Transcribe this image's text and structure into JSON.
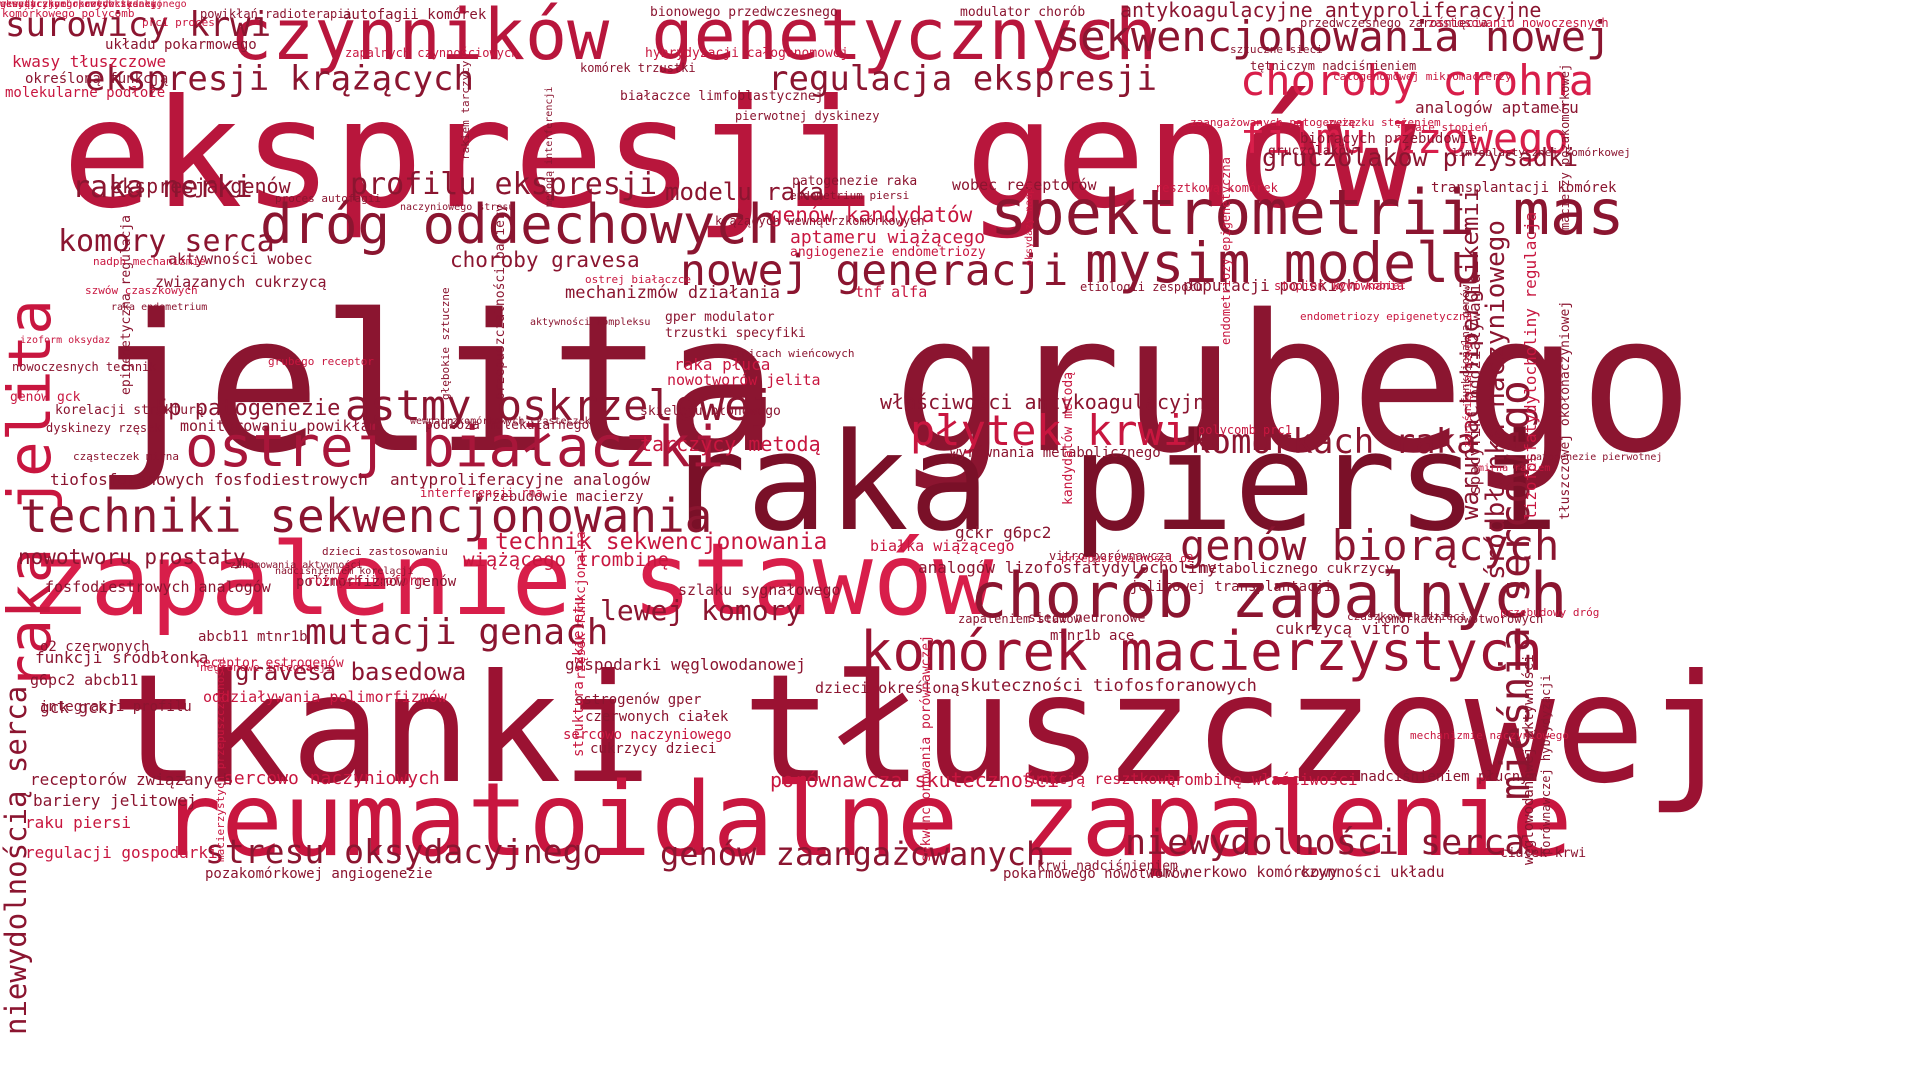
{
  "palette": {
    "background": "#ffffff",
    "dark": "#8b1530",
    "mid": "#b8163c",
    "bright": "#d81e4a",
    "wine": "#7a1028"
  },
  "words": [
    {
      "text": "jelita grubego",
      "color": "#8b1530"
    },
    {
      "text": "ekspresji genów",
      "color": "#b8163c"
    },
    {
      "text": "raka piersi",
      "color": "#7a1028"
    },
    {
      "text": "tkanki tłuszczowej",
      "color": "#9b1232"
    },
    {
      "text": "reumatoidalne zapalenie",
      "color": "#c8163f"
    },
    {
      "text": "zapalenie stawów",
      "color": "#d81e4a"
    },
    {
      "text": "czynników genetycznych",
      "color": "#b8163c"
    },
    {
      "text": "spektrometrii mas",
      "color": "#8b1530"
    },
    {
      "text": "dróg oddechowych",
      "color": "#8b1530"
    },
    {
      "text": "mysim modelu",
      "color": "#8b1530"
    },
    {
      "text": "ostrej białaczki",
      "color": "#a8163a"
    },
    {
      "text": "techniki sekwencjonowania",
      "color": "#8b1530"
    },
    {
      "text": "chorób zapalnych",
      "color": "#8b1530"
    },
    {
      "text": "komórek macierzystych",
      "color": "#9b1232"
    },
    {
      "text": "raka jelita",
      "color": "#c8163f"
    },
    {
      "text": "sekwencjonowania nowej",
      "color": "#8b1530"
    },
    {
      "text": "choroby crohna",
      "color": "#d81e4a"
    },
    {
      "text": "filmu łzowego",
      "color": "#d81e4a"
    },
    {
      "text": "nowej generacji",
      "color": "#8b1530"
    },
    {
      "text": "płytek krwi",
      "color": "#c8163f"
    },
    {
      "text": "astmy oskrzelowej",
      "color": "#8b1530"
    },
    {
      "text": "genów biorących",
      "color": "#8b1530"
    },
    {
      "text": "mutacji genach",
      "color": "#8b1530"
    },
    {
      "text": "mięśnia sercowego",
      "color": "#8b1530"
    },
    {
      "text": "komórkach raka",
      "color": "#8b1530"
    },
    {
      "text": "stresu oksydacyjnego",
      "color": "#8b1530"
    },
    {
      "text": "niewydolności serca",
      "color": "#8b1530"
    },
    {
      "text": "genów zaangażowanych",
      "color": "#8b1530"
    },
    {
      "text": "ekspresji krążących",
      "color": "#8b1530"
    },
    {
      "text": "regulacja ekspresji",
      "color": "#8b1530"
    },
    {
      "text": "surowicy krwi",
      "color": "#8b1530"
    },
    {
      "text": "profilu ekspresji",
      "color": "#8b1530"
    },
    {
      "text": "komory serca",
      "color": "#8b1530"
    },
    {
      "text": "raka nerki",
      "color": "#8b1530"
    },
    {
      "text": "lewej komory",
      "color": "#8b1530"
    },
    {
      "text": "gravesa basedowa",
      "color": "#8b1530"
    },
    {
      "text": "niewydolnością serca",
      "color": "#8b1530"
    },
    {
      "text": "gruczolaków przysadki",
      "color": "#8b1530"
    },
    {
      "text": "warunkach hiperglikemii",
      "color": "#8b1530"
    },
    {
      "text": "śródbłonka naczyniowego",
      "color": "#8b1530"
    },
    {
      "text": "ekspresja genów",
      "color": "#8b1530"
    },
    {
      "text": "modelu raka",
      "color": "#8b1530"
    },
    {
      "text": "genów kandydatów",
      "color": "#c8163f"
    },
    {
      "text": "choroby gravesa",
      "color": "#8b1530"
    },
    {
      "text": "aptameru wiążącego",
      "color": "#c8163f"
    },
    {
      "text": "mechanizmów działania",
      "color": "#8b1530"
    },
    {
      "text": "5p patogenezie",
      "color": "#8b1530"
    },
    {
      "text": "właściwości antykoagulacyjne",
      "color": "#8b1530"
    },
    {
      "text": "tarczycy metodą",
      "color": "#c8163f"
    },
    {
      "text": "technik sekwencjonowania",
      "color": "#c8163f"
    },
    {
      "text": "nowotworu prostaty",
      "color": "#8b1530"
    },
    {
      "text": "wiążącego trombinę",
      "color": "#c8163f"
    },
    {
      "text": "tiofosforanowych fosfodiestrowych",
      "color": "#8b1530"
    },
    {
      "text": "antyproliferacyjne analogów",
      "color": "#8b1530"
    },
    {
      "text": "fosfodiestrowych analogów",
      "color": "#8b1530"
    },
    {
      "text": "funkcji śródbłonka",
      "color": "#8b1530"
    },
    {
      "text": "skuteczności tiofosforanowych",
      "color": "#8b1530"
    },
    {
      "text": "porównawcza skuteczności",
      "color": "#c8163f"
    },
    {
      "text": "sercowo naczyniowych",
      "color": "#c8163f"
    },
    {
      "text": "receptorów związanych",
      "color": "#8b1530"
    },
    {
      "text": "bariery jelitowej",
      "color": "#8b1530"
    },
    {
      "text": "raku piersi",
      "color": "#c8163f"
    },
    {
      "text": "regulacji gospodarki",
      "color": "#c8163f"
    },
    {
      "text": "antykoagulacyjne antyproliferacyjne",
      "color": "#8b1530"
    },
    {
      "text": "analogów aptameru",
      "color": "#8b1530"
    },
    {
      "text": "populacji polskich",
      "color": "#8b1530"
    },
    {
      "text": "specyfiki oddziaływania",
      "color": "#8b1530"
    },
    {
      "text": "lizofosfatydylocholiny regulacja",
      "color": "#c8163f"
    },
    {
      "text": "tłuszczowej okołonaczyniowej",
      "color": "#8b1530"
    },
    {
      "text": "analogów lizofosfatydylocholiny",
      "color": "#8b1530"
    },
    {
      "text": "cukrzycą vitro",
      "color": "#8b1530"
    },
    {
      "text": "mtnr1b ace",
      "color": "#8b1530"
    },
    {
      "text": "białka wiążącego",
      "color": "#c8163f"
    },
    {
      "text": "gospodarki węglowodanowej",
      "color": "#8b1530"
    },
    {
      "text": "polimorfizmów genów",
      "color": "#8b1530"
    },
    {
      "text": "abcb11 mtnr1b",
      "color": "#8b1530"
    },
    {
      "text": "g6pc2 abcb11",
      "color": "#8b1530"
    },
    {
      "text": "gck gckr",
      "color": "#8b1530"
    },
    {
      "text": "węglowodanowej aktywności",
      "color": "#8b1530"
    },
    {
      "text": "czynności układu",
      "color": "#8b1530"
    },
    {
      "text": "ruw nerkowo komórkowy",
      "color": "#8b1530"
    },
    {
      "text": "transplantacji komórek",
      "color": "#8b1530"
    },
    {
      "text": "wobec receptorów",
      "color": "#8b1530"
    },
    {
      "text": "trombinę właściwości",
      "color": "#c8163f"
    },
    {
      "text": "funkcją resztkową",
      "color": "#c8163f"
    },
    {
      "text": "nadciśnieniem płucnym",
      "color": "#8b1530"
    },
    {
      "text": "dzieci określoną",
      "color": "#8b1530"
    },
    {
      "text": "szlaku sygnałowego",
      "color": "#8b1530"
    },
    {
      "text": "przebudowie macierzy",
      "color": "#8b1530"
    },
    {
      "text": "skieletu błonowego",
      "color": "#8b1530"
    },
    {
      "text": "raka płuca",
      "color": "#c8163f"
    },
    {
      "text": "nowotworów jelita",
      "color": "#c8163f"
    },
    {
      "text": "kwasy tłuszczowe",
      "color": "#c8163f"
    },
    {
      "text": "układu pokarmowego",
      "color": "#8b1530"
    },
    {
      "text": "określoną funkcją",
      "color": "#8b1530"
    },
    {
      "text": "molekularne podłoże",
      "color": "#c8163f"
    },
    {
      "text": "aktywności wobec",
      "color": "#8b1530"
    },
    {
      "text": "związanych cukrzycą",
      "color": "#8b1530"
    },
    {
      "text": "monitorowaniu powikłań",
      "color": "#8b1530"
    },
    {
      "text": "podłoża molekularnego",
      "color": "#8b1530"
    },
    {
      "text": "oddziaływania polimorfizmów",
      "color": "#c8163f"
    },
    {
      "text": "metabolicznego cukrzycy",
      "color": "#8b1530"
    },
    {
      "text": "jelitowej transplantacji",
      "color": "#8b1530"
    },
    {
      "text": "wyrównania metabolicznego",
      "color": "#8b1530"
    },
    {
      "text": "czerwonych ciałek",
      "color": "#8b1530"
    },
    {
      "text": "estrogenów gper",
      "color": "#8b1530"
    },
    {
      "text": "cukrzycy dzieci",
      "color": "#8b1530"
    },
    {
      "text": "sercowo naczyniowego",
      "color": "#c8163f"
    },
    {
      "text": "pozakomórkowej angiogenezie",
      "color": "#8b1530"
    },
    {
      "text": "pokarmowego nowotworów",
      "color": "#8b1530"
    },
    {
      "text": "gruczolaków",
      "color": "#8b1530"
    },
    {
      "text": "komórek trzustki",
      "color": "#8b1530"
    },
    {
      "text": "hybrydyzacji całogenomowej",
      "color": "#c8163f"
    },
    {
      "text": "zapalnych czynnościowych",
      "color": "#c8163f"
    },
    {
      "text": "białaczce limfoblastycznej",
      "color": "#8b1530"
    },
    {
      "text": "pierwotnej dyskinezy",
      "color": "#8b1530"
    },
    {
      "text": "patogenezie raka",
      "color": "#8b1530"
    },
    {
      "text": "endometrium piersi",
      "color": "#8b1530"
    },
    {
      "text": "przedwczesnego zarośnięcia",
      "color": "#8b1530"
    },
    {
      "text": "zastosowaniu nowoczesnych",
      "color": "#c8163f"
    },
    {
      "text": "tętniczym nadciśnieniem",
      "color": "#8b1530"
    },
    {
      "text": "biorących przebudowie",
      "color": "#8b1530"
    },
    {
      "text": "związku stężeniem",
      "color": "#c8163f"
    },
    {
      "text": "limfoblastycznej komórkowej",
      "color": "#8b1530"
    },
    {
      "text": "stopień wyrównania",
      "color": "#c8163f"
    },
    {
      "text": "etiologii zespołu",
      "color": "#8b1530"
    },
    {
      "text": "resztkową komórek",
      "color": "#c8163f"
    },
    {
      "text": "angiogenezie endometriozy",
      "color": "#c8163f"
    },
    {
      "text": "tnf alfa",
      "color": "#c8163f"
    },
    {
      "text": "gper modulator",
      "color": "#8b1530"
    },
    {
      "text": "trzustki specyfiki",
      "color": "#8b1530"
    },
    {
      "text": "aktywności kompleksu",
      "color": "#8b1530"
    },
    {
      "text": "ostrej białaczce",
      "color": "#c8163f"
    },
    {
      "text": "interferencji rna",
      "color": "#c8163f"
    },
    {
      "text": "gckr g6pc2",
      "color": "#8b1530"
    },
    {
      "text": "vitro porównawcza",
      "color": "#8b1530"
    },
    {
      "text": "sieci neuronowe",
      "color": "#8b1530"
    },
    {
      "text": "zapaleniem stawów",
      "color": "#8b1530"
    },
    {
      "text": "komórkach nowotworowych",
      "color": "#8b1530"
    },
    {
      "text": "czaszkowych dzieci",
      "color": "#8b1530"
    },
    {
      "text": "ciałek krwi",
      "color": "#8b1530"
    },
    {
      "text": "krwi nadciśnieniem",
      "color": "#8b1530"
    },
    {
      "text": "receptor estrogenów",
      "color": "#c8163f"
    },
    {
      "text": "o2 czerwonych",
      "color": "#8b1530"
    },
    {
      "text": "integracji profilu",
      "color": "#8b1530"
    },
    {
      "text": "korelacji strukturą",
      "color": "#8b1530"
    },
    {
      "text": "dyskinezy rzęsek",
      "color": "#8b1530"
    },
    {
      "text": "genów gck",
      "color": "#c8163f"
    },
    {
      "text": "szwów czaszkowych",
      "color": "#c8163f"
    },
    {
      "text": "nowoczesnych technik",
      "color": "#8b1530"
    },
    {
      "text": "grubego receptor",
      "color": "#c8163f"
    },
    {
      "text": "przepuszczalności bariery",
      "color": "#8b1530"
    },
    {
      "text": "głębokie sztuczne",
      "color": "#8b1530"
    },
    {
      "text": "endometriozy epigenetyczna",
      "color": "#c8163f"
    },
    {
      "text": "struktura szkieletu",
      "color": "#c8163f"
    },
    {
      "text": "kandydatów metodą",
      "color": "#c8163f"
    },
    {
      "text": "rzęsek funkcjonalna",
      "color": "#c8163f"
    },
    {
      "text": "epigenetyczna regulacja",
      "color": "#8b1530"
    },
    {
      "text": "sekwencjonowania porównawczej",
      "color": "#c8163f"
    },
    {
      "text": "porównawczej hybrydyzacji",
      "color": "#8b1530"
    },
    {
      "text": "ace stopień",
      "color": "#c8163f"
    },
    {
      "text": "macierzy pozakomórkowej",
      "color": "#8b1530"
    },
    {
      "text": "powikłań radioterapii",
      "color": "#8b1530"
    },
    {
      "text": "autofagii komórek",
      "color": "#8b1530"
    },
    {
      "text": "bionowego przedwczesnego",
      "color": "#8b1530"
    },
    {
      "text": "modulator chorób",
      "color": "#8b1530"
    },
    {
      "text": "krążących wewnątrzkomórkowych",
      "color": "#8b1530"
    },
    {
      "text": "zaangażowanych patogenezę",
      "color": "#c8163f"
    },
    {
      "text": "całogenomowej mikromacierzy",
      "color": "#c8163f"
    },
    {
      "text": "sztuczne sieci",
      "color": "#8b1530"
    },
    {
      "text": "neuronowe integracji",
      "color": "#c8163f"
    },
    {
      "text": "macierzystych przepuszczalności",
      "color": "#c8163f"
    },
    {
      "text": "polycomb prc1",
      "color": "#c8163f"
    },
    {
      "text": "zarośnięcia szwów",
      "color": "#c8163f"
    },
    {
      "text": "mirna rakiem",
      "color": "#c8163f"
    },
    {
      "text": "patogenezie pierwotnej",
      "color": "#8b1530"
    },
    {
      "text": "funkcjonalna genów",
      "color": "#8b1530"
    },
    {
      "text": "izoform oksydaz",
      "color": "#c8163f"
    },
    {
      "text": "nadph mechanizmie",
      "color": "#c8163f"
    },
    {
      "text": "różnych izoform",
      "color": "#c8163f"
    },
    {
      "text": "dzieci zastosowaniu",
      "color": "#8b1530"
    },
    {
      "text": "tętnicach wieńcowych",
      "color": "#8b1530"
    },
    {
      "text": "przepuszczalności o2",
      "color": "#c8163f"
    },
    {
      "text": "przebudowy dróg",
      "color": "#c8163f"
    },
    {
      "text": "mechanizmie naczyniowego",
      "color": "#c8163f"
    },
    {
      "text": "krwi kobiet",
      "color": "#c8163f"
    },
    {
      "text": "endometriozy epigenetyczna",
      "color": "#c8163f"
    },
    {
      "text": "metodą interferencji",
      "color": "#8b1530"
    },
    {
      "text": "rakiem tarczycy",
      "color": "#8b1530"
    },
    {
      "text": "komórkowego polycomb",
      "color": "#c8163f"
    },
    {
      "text": "prc1 proces",
      "color": "#c8163f"
    },
    {
      "text": "proces autofagii",
      "color": "#8b1530"
    },
    {
      "text": "wewnątrzkomórkowych cząsteczek",
      "color": "#8b1530"
    },
    {
      "text": "cząsteczek mirna",
      "color": "#8b1530"
    },
    {
      "text": "raka endometrium",
      "color": "#8b1530"
    },
    {
      "text": "nadciśnieniem korelacji",
      "color": "#8b1530"
    },
    {
      "text": "zahamowania aktywności",
      "color": "#8b1530"
    },
    {
      "text": "naczyniowego stresu",
      "color": "#8b1530"
    },
    {
      "text": "oksydazy nadph",
      "color": "#c8163f"
    },
    {
      "text": "oksydacyjnego antyoksydacyjnego",
      "color": "#c8163f"
    },
    {
      "text": "wewnątrzkomórkowych tkanki",
      "color": "#c8163f"
    },
    {
      "text": "genetycznych przedwczesnego",
      "color": "#c8163f"
    }
  ]
}
